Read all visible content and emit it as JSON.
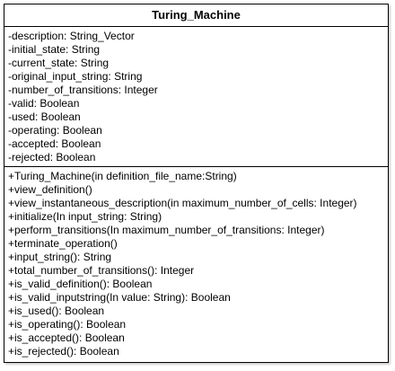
{
  "class_name": "Turing_Machine",
  "attributes": [
    "-description: String_Vector",
    "-initial_state: String",
    "-current_state: String",
    "-original_input_string: String",
    "-number_of_transitions: Integer",
    "-valid: Boolean",
    "-used: Boolean",
    "-operating: Boolean",
    "-accepted: Boolean",
    "-rejected: Boolean"
  ],
  "operations": [
    "+Turing_Machine(in definition_file_name:String)",
    "+view_definition()",
    "+view_instantaneous_description(in maximum_number_of_cells: Integer)",
    "+initialize(In input_string: String)",
    "+perform_transitions(In maximum_number_of_transitions: Integer)",
    "+terminate_operation()",
    "+input_string(): String",
    "+total_number_of_transitions(): Integer",
    "+is_valid_definition(): Boolean",
    "+is_valid_inputstring(In value: String): Boolean",
    "+is_used(): Boolean",
    "+is_operating(): Boolean",
    "+is_accepted(): Boolean",
    "+is_rejected(): Boolean"
  ]
}
